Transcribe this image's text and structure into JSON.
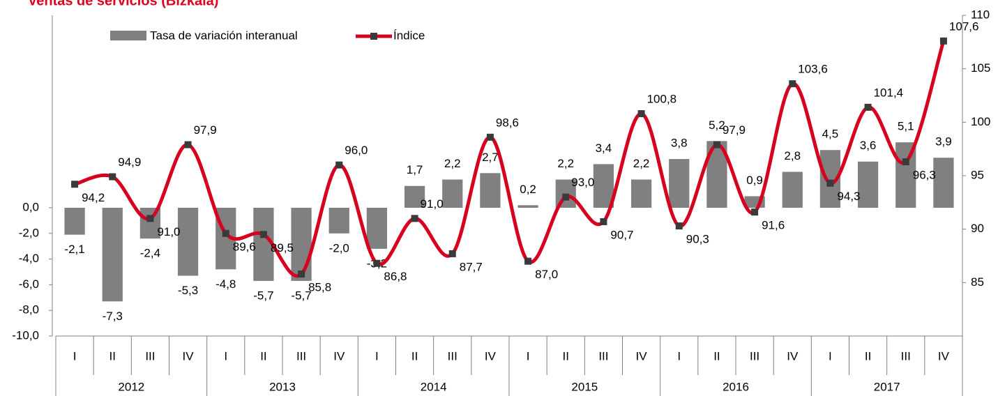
{
  "chart_data": {
    "type": "bar_line",
    "title": "Ventas de servicios (Bizkaia)",
    "categories": [
      "I",
      "II",
      "III",
      "IV",
      "I",
      "II",
      "III",
      "IV",
      "I",
      "II",
      "III",
      "IV",
      "I",
      "II",
      "III",
      "IV",
      "I",
      "II",
      "III",
      "IV",
      "I",
      "II",
      "III",
      "IV"
    ],
    "category_groups": [
      "2012",
      "2013",
      "2014",
      "2015",
      "2016",
      "2017"
    ],
    "series": [
      {
        "name": "Tasa de variación interanual",
        "color": "#808080",
        "kind": "bar",
        "axis": "y",
        "values": [
          -2.1,
          -7.3,
          -2.4,
          -5.3,
          -4.8,
          -5.7,
          -5.7,
          -2.0,
          -3.2,
          1.7,
          2.2,
          2.7,
          0.2,
          2.2,
          3.4,
          2.2,
          3.8,
          5.2,
          0.9,
          2.8,
          4.5,
          3.6,
          5.1,
          3.9
        ],
        "value_labels": [
          "-2,1",
          "-7,3",
          "-2,4",
          "-5,3",
          "-4,8",
          "-5,7",
          "-5,7",
          "-2,0",
          "-3,2",
          "1,7",
          "2,2",
          "2,7",
          "0,2",
          "2,2",
          "3,4",
          "2,2",
          "3,8",
          "5,2",
          "0,9",
          "2,8",
          "4,5",
          "3,6",
          "5,1",
          "3,9"
        ]
      },
      {
        "name": "Índice",
        "color": "#d7001f",
        "marker_color": "#3a3a3a",
        "kind": "line",
        "axis": "y2",
        "values": [
          94.2,
          94.9,
          91.0,
          97.9,
          89.6,
          89.5,
          85.8,
          96.0,
          86.8,
          91.0,
          87.7,
          98.6,
          87.0,
          93.0,
          90.7,
          100.8,
          90.3,
          97.9,
          91.6,
          103.6,
          94.3,
          101.4,
          96.3,
          107.6
        ],
        "value_labels": [
          "94,2",
          "94,9",
          "91,0",
          "97,9",
          "89,6",
          "89,5",
          "85,8",
          "96,0",
          "86,8",
          "91,0",
          "87,7",
          "98,6",
          "87,0",
          "93,0",
          "90,7",
          "100,8",
          "90,3",
          "97,9",
          "91,6",
          "103,6",
          "94,3",
          "101,4",
          "96,3",
          "107,6"
        ]
      }
    ],
    "ylim": [
      -10,
      15
    ],
    "yticks": [
      {
        "value": -10,
        "label": "-10,0"
      },
      {
        "value": -8,
        "label": "-8,0"
      },
      {
        "value": -6,
        "label": "-6,0"
      },
      {
        "value": -4,
        "label": "-4,0"
      },
      {
        "value": -2,
        "label": "-2,0"
      },
      {
        "value": 0,
        "label": "0,0"
      }
    ],
    "y2lim": [
      80,
      110
    ],
    "y2ticks": [
      85,
      90,
      95,
      100,
      105,
      110
    ],
    "legend": "top-left"
  }
}
